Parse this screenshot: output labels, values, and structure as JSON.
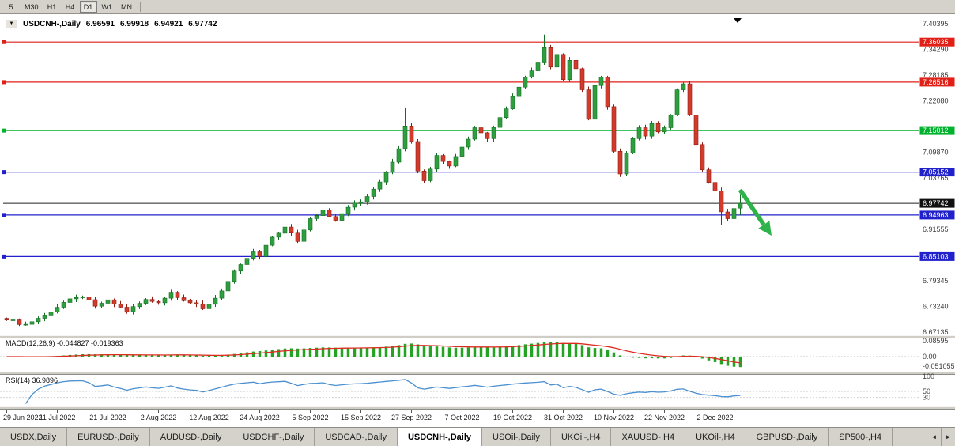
{
  "toolbar": {
    "timeframes": [
      {
        "label": "5",
        "active": false
      },
      {
        "label": "M30",
        "active": false
      },
      {
        "label": "H1",
        "active": false
      },
      {
        "label": "H4",
        "active": false
      },
      {
        "label": "D1",
        "active": true
      },
      {
        "label": "W1",
        "active": false
      },
      {
        "label": "MN",
        "active": false
      }
    ]
  },
  "chart": {
    "header": {
      "symbol": "USDCNH-,Daily",
      "open": "6.96591",
      "high": "6.99918",
      "low": "6.94921",
      "close": "6.97742"
    },
    "macd_header": "MACD(12,26,9) -0.044827 -0.019363",
    "rsi_header": "RSI(14) 36.9896"
  },
  "chart_data": {
    "type": "candlestick",
    "symbol": "USDCNH-",
    "timeframe": "Daily",
    "bars_total": 117,
    "x_labels": [
      "29 Jun 2022",
      "11 Jul 2022",
      "21 Jul 2022",
      "2 Aug 2022",
      "12 Aug 2022",
      "24 Aug 2022",
      "5 Sep 2022",
      "15 Sep 2022",
      "27 Sep 2022",
      "7 Oct 2022",
      "19 Oct 2022",
      "31 Oct 2022",
      "10 Nov 2022",
      "22 Nov 2022",
      "2 Dec 2022"
    ],
    "x_label_step_bars": 8,
    "price_axis": {
      "top": 7.40395,
      "bottom": 6.66765,
      "gray_labels": [
        {
          "price": 7.40395,
          "label": "7.40395"
        },
        {
          "price": 7.3429,
          "label": "7.34290"
        },
        {
          "price": 7.28185,
          "label": "7.28185"
        },
        {
          "price": 7.2208,
          "label": "7.22080"
        },
        {
          "price": 7.0987,
          "label": "7.09870"
        },
        {
          "price": 7.03765,
          "label": "7.03765"
        },
        {
          "price": 6.91555,
          "label": "6.91555"
        },
        {
          "price": 6.79345,
          "label": "6.79345"
        },
        {
          "price": 6.7324,
          "label": "6.73240"
        },
        {
          "price": 6.67135,
          "label": "6.67135"
        }
      ]
    },
    "levels": [
      {
        "price": 7.36035,
        "label": "7.36035",
        "color": "#e01f16"
      },
      {
        "price": 7.26516,
        "label": "7.26516",
        "color": "#e01f16"
      },
      {
        "price": 7.15012,
        "label": "7.15012",
        "color": "#00b22d"
      },
      {
        "price": 7.05152,
        "label": "7.05152",
        "color": "#2121cc"
      },
      {
        "price": 6.94963,
        "label": "6.94963",
        "color": "#2121cc"
      },
      {
        "price": 6.85103,
        "label": "6.85103",
        "color": "#2121cc"
      }
    ],
    "current_price": {
      "price": 6.97742,
      "label": "6.97742",
      "color": "#111111"
    },
    "close_path_keyframes": [
      [
        0,
        6.7
      ],
      [
        3,
        6.69
      ],
      [
        6,
        6.712
      ],
      [
        9,
        6.742
      ],
      [
        12,
        6.755
      ],
      [
        14,
        6.733
      ],
      [
        16,
        6.748
      ],
      [
        19,
        6.72
      ],
      [
        22,
        6.749
      ],
      [
        24,
        6.741
      ],
      [
        26,
        6.766
      ],
      [
        29,
        6.741
      ],
      [
        31,
        6.727
      ],
      [
        33,
        6.752
      ],
      [
        35,
        6.792
      ],
      [
        37,
        6.832
      ],
      [
        39,
        6.862
      ],
      [
        40,
        6.851
      ],
      [
        42,
        6.897
      ],
      [
        44,
        6.921
      ],
      [
        46,
        6.887
      ],
      [
        48,
        6.941
      ],
      [
        50,
        6.962
      ],
      [
        52,
        6.937
      ],
      [
        54,
        6.968
      ],
      [
        56,
        6.981
      ],
      [
        58,
        7.011
      ],
      [
        60,
        7.051
      ],
      [
        62,
        7.107
      ],
      [
        63,
        7.161
      ],
      [
        64,
        7.124
      ],
      [
        65,
        7.054
      ],
      [
        66,
        7.031
      ],
      [
        68,
        7.091
      ],
      [
        70,
        7.066
      ],
      [
        72,
        7.111
      ],
      [
        74,
        7.157
      ],
      [
        76,
        7.131
      ],
      [
        78,
        7.181
      ],
      [
        80,
        7.231
      ],
      [
        82,
        7.277
      ],
      [
        84,
        7.311
      ],
      [
        85,
        7.347
      ],
      [
        86,
        7.301
      ],
      [
        87,
        7.331
      ],
      [
        88,
        7.271
      ],
      [
        89,
        7.317
      ],
      [
        90,
        7.297
      ],
      [
        91,
        7.247
      ],
      [
        92,
        7.177
      ],
      [
        93,
        7.257
      ],
      [
        94,
        7.277
      ],
      [
        95,
        7.207
      ],
      [
        96,
        7.101
      ],
      [
        97,
        7.047
      ],
      [
        98,
        7.097
      ],
      [
        99,
        7.131
      ],
      [
        100,
        7.157
      ],
      [
        101,
        7.137
      ],
      [
        102,
        7.167
      ],
      [
        103,
        7.147
      ],
      [
        104,
        7.157
      ],
      [
        105,
        7.187
      ],
      [
        106,
        7.247
      ],
      [
        107,
        7.261
      ],
      [
        108,
        7.187
      ],
      [
        109,
        7.117
      ],
      [
        110,
        7.057
      ],
      [
        111,
        7.027
      ],
      [
        112,
        7.007
      ],
      [
        113,
        6.957
      ],
      [
        114,
        6.941
      ],
      [
        115,
        6.965
      ],
      [
        116,
        6.97742
      ]
    ],
    "wick_overrides": {
      "63": {
        "high": 7.205
      },
      "85": {
        "high": 7.378
      },
      "113": {
        "low": 6.9255
      },
      "116": {
        "open": 6.96591,
        "high": 6.99918,
        "low": 6.94921,
        "close": 6.97742
      }
    },
    "indicators": [
      {
        "type": "MACD",
        "params": [
          12,
          26,
          9
        ],
        "current": {
          "macd": -0.044827,
          "signal": -0.019363
        },
        "scale": [
          {
            "value": 0.08595,
            "label": "0.08595"
          },
          {
            "value": 0.0,
            "label": "0.00"
          },
          {
            "value": -0.051055,
            "label": "-0.051055"
          }
        ]
      },
      {
        "type": "RSI",
        "params": [
          14
        ],
        "current": 36.9896,
        "scale": [
          {
            "value": 100,
            "label": "100"
          },
          {
            "value": 50,
            "label": "50"
          },
          {
            "value": 30,
            "label": "30"
          }
        ]
      }
    ],
    "annotations": [
      {
        "type": "arrow",
        "direction": "down-right",
        "color": "#2eb34a"
      }
    ],
    "colors": {
      "candle_up": "#2f9e3f",
      "candle_up_edge": "#156f23",
      "candle_down": "#d23b2c",
      "candle_down_edge": "#8f1d13",
      "macd_histogram": "#25a325",
      "macd_signal": "#dd2c20",
      "rsi_line": "#4a8fd0"
    }
  },
  "tabbar": {
    "scroll_left": "◄",
    "scroll_right": "►",
    "tabs": [
      {
        "label": "USDX,Daily",
        "active": false
      },
      {
        "label": "EURUSD-,Daily",
        "active": false
      },
      {
        "label": "AUDUSD-,Daily",
        "active": false
      },
      {
        "label": "USDCHF-,Daily",
        "active": false
      },
      {
        "label": "USDCAD-,Daily",
        "active": false
      },
      {
        "label": "USDCNH-,Daily",
        "active": true
      },
      {
        "label": "USOil-,Daily",
        "active": false
      },
      {
        "label": "UKOil-,H4",
        "active": false
      },
      {
        "label": "XAUUSD-,H4",
        "active": false
      },
      {
        "label": "UKOil-,H4",
        "active": false
      },
      {
        "label": "GBPUSD-,Daily",
        "active": false
      },
      {
        "label": "SP500-,H4",
        "active": false
      }
    ]
  }
}
